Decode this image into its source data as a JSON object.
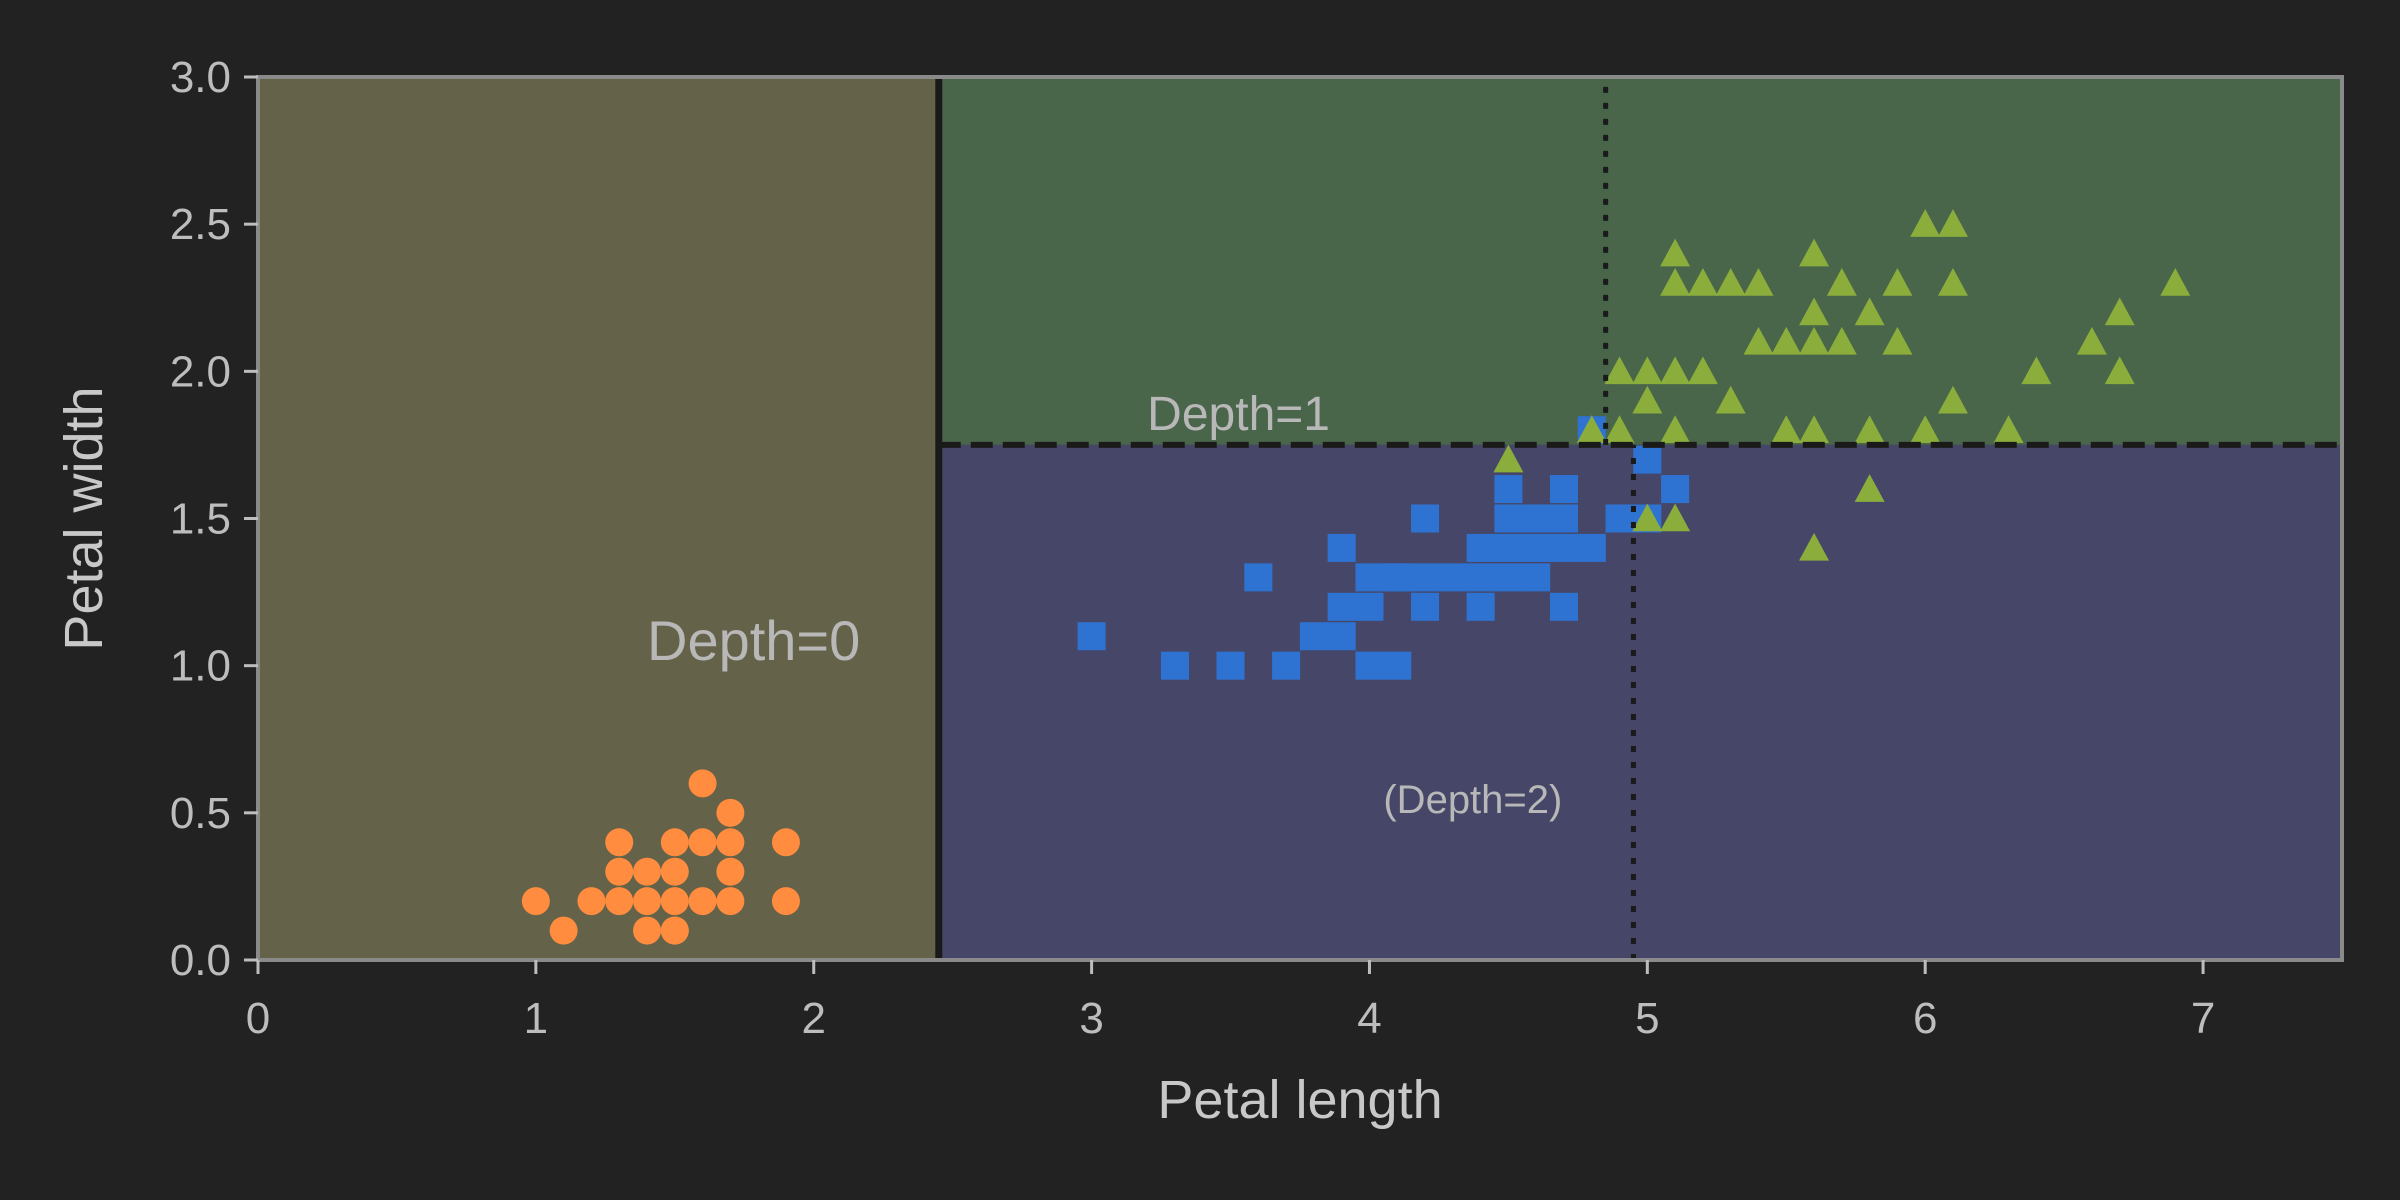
{
  "chart_data": {
    "type": "scatter",
    "title": "",
    "xlabel": "Petal length",
    "ylabel": "Petal width",
    "xlim": [
      0,
      7.5
    ],
    "ylim": [
      0,
      3.0
    ],
    "xticks": [
      "0",
      "1",
      "2",
      "3",
      "4",
      "5",
      "6",
      "7"
    ],
    "yticks": [
      "0.0",
      "0.5",
      "1.0",
      "1.5",
      "2.0",
      "2.5",
      "3.0"
    ],
    "grid": false,
    "background": "#222222",
    "regions": [
      {
        "x": [
          0,
          2.45
        ],
        "y": [
          0,
          3.0
        ],
        "color": "#646248"
      },
      {
        "x": [
          2.45,
          7.5
        ],
        "y": [
          1.75,
          3.0
        ],
        "color": "#49654a"
      },
      {
        "x": [
          2.45,
          7.5
        ],
        "y": [
          0,
          1.75
        ],
        "color": "#464768"
      }
    ],
    "boundaries": [
      {
        "style": "solid",
        "x": [
          2.45,
          2.45
        ],
        "y": [
          0,
          3.0
        ],
        "color": "#1a1a1a"
      },
      {
        "style": "dashed",
        "x": [
          2.45,
          7.5
        ],
        "y": [
          1.75,
          1.75
        ],
        "color": "#1a1a1a"
      },
      {
        "style": "dotted",
        "x": [
          4.85,
          4.85
        ],
        "y": [
          1.75,
          3.0
        ],
        "color": "#1a1a1a"
      },
      {
        "style": "dotted",
        "x": [
          4.95,
          4.95
        ],
        "y": [
          0,
          1.75
        ],
        "color": "#1a1a1a"
      }
    ],
    "annotations": [
      {
        "text": "Depth=0",
        "x": 1.4,
        "y": 1.02,
        "size": 56
      },
      {
        "text": "Depth=1",
        "x": 3.2,
        "y": 1.8,
        "size": 48
      },
      {
        "text": "(Depth=2)",
        "x": 4.05,
        "y": 0.5,
        "size": 40
      }
    ],
    "series": [
      {
        "marker": "circle",
        "color": "#ff8c3f",
        "x": [
          1.0,
          1.1,
          1.2,
          1.3,
          1.3,
          1.3,
          1.4,
          1.4,
          1.4,
          1.5,
          1.5,
          1.5,
          1.5,
          1.5,
          1.6,
          1.6,
          1.6,
          1.7,
          1.7,
          1.7,
          1.7,
          1.9,
          1.9
        ],
        "y": [
          0.2,
          0.1,
          0.2,
          0.2,
          0.3,
          0.4,
          0.1,
          0.2,
          0.3,
          0.1,
          0.2,
          0.3,
          0.4,
          0.1,
          0.2,
          0.4,
          0.6,
          0.2,
          0.3,
          0.4,
          0.5,
          0.2,
          0.4
        ]
      },
      {
        "marker": "square",
        "color": "#2f73d2",
        "x": [
          3.0,
          3.3,
          3.5,
          3.6,
          3.7,
          3.8,
          3.9,
          3.9,
          3.9,
          4.0,
          4.0,
          4.0,
          4.1,
          4.1,
          4.1,
          4.2,
          4.2,
          4.2,
          4.3,
          4.4,
          4.4,
          4.4,
          4.5,
          4.5,
          4.5,
          4.5,
          4.6,
          4.6,
          4.6,
          4.7,
          4.7,
          4.7,
          4.7,
          4.8,
          4.8,
          4.9,
          4.9,
          5.0,
          5.0,
          5.1
        ],
        "y": [
          1.1,
          1.0,
          1.0,
          1.3,
          1.0,
          1.1,
          1.1,
          1.2,
          1.4,
          1.0,
          1.2,
          1.3,
          1.0,
          1.3,
          1.3,
          1.2,
          1.3,
          1.5,
          1.3,
          1.2,
          1.3,
          1.4,
          1.3,
          1.4,
          1.5,
          1.6,
          1.3,
          1.4,
          1.5,
          1.2,
          1.4,
          1.5,
          1.6,
          1.4,
          1.8,
          1.5,
          1.5,
          1.7,
          1.5,
          1.6
        ]
      },
      {
        "marker": "triangle",
        "color": "#8aad3c",
        "x": [
          4.5,
          4.8,
          4.9,
          4.9,
          5.0,
          5.0,
          5.0,
          5.1,
          5.1,
          5.1,
          5.1,
          5.1,
          5.2,
          5.2,
          5.3,
          5.3,
          5.4,
          5.4,
          5.5,
          5.5,
          5.6,
          5.6,
          5.6,
          5.6,
          5.6,
          5.7,
          5.7,
          5.8,
          5.8,
          5.8,
          5.9,
          5.9,
          6.0,
          6.0,
          6.1,
          6.1,
          6.1,
          6.3,
          6.4,
          6.6,
          6.7,
          6.7,
          6.9
        ],
        "y": [
          1.7,
          1.8,
          1.8,
          2.0,
          1.5,
          1.9,
          2.0,
          1.8,
          2.0,
          2.3,
          2.4,
          1.5,
          2.0,
          2.3,
          1.9,
          2.3,
          2.1,
          2.3,
          1.8,
          2.1,
          1.4,
          1.8,
          2.1,
          2.2,
          2.4,
          2.1,
          2.3,
          1.6,
          1.8,
          2.2,
          2.1,
          2.3,
          1.8,
          2.5,
          1.9,
          2.3,
          2.5,
          1.8,
          2.0,
          2.1,
          2.0,
          2.2,
          2.3
        ]
      }
    ]
  }
}
